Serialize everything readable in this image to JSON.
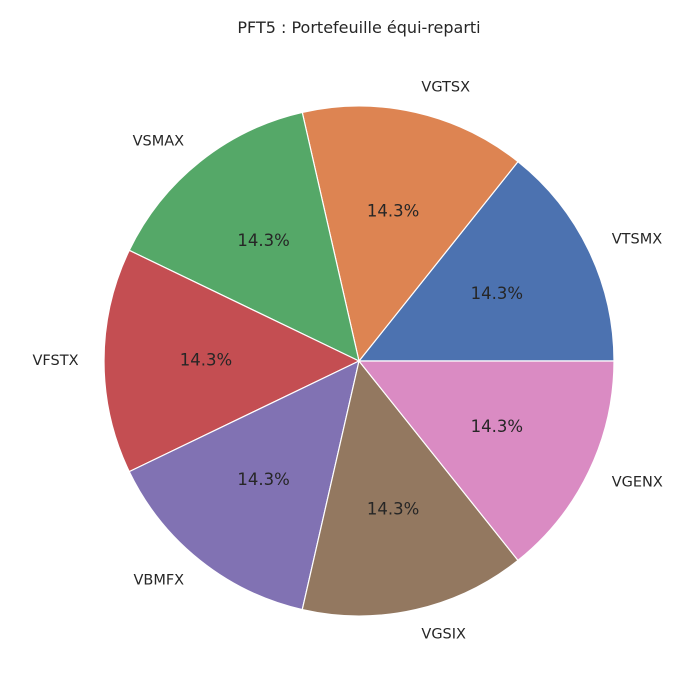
{
  "chart_data": {
    "type": "pie",
    "title": "PFT5 : Portefeuille équi-reparti",
    "start_angle_deg": 0,
    "direction": "counterclockwise",
    "slices": [
      {
        "label": "VTSMX",
        "value": 14.3,
        "pct_label": "14.3%",
        "color": "#4c72b0"
      },
      {
        "label": "VGTSX",
        "value": 14.3,
        "pct_label": "14.3%",
        "color": "#dd8452"
      },
      {
        "label": "VSMAX",
        "value": 14.3,
        "pct_label": "14.3%",
        "color": "#55a868"
      },
      {
        "label": "VFSTX",
        "value": 14.3,
        "pct_label": "14.3%",
        "color": "#c44e52"
      },
      {
        "label": "VBMFX",
        "value": 14.3,
        "pct_label": "14.3%",
        "color": "#8172b3"
      },
      {
        "label": "VGSIX",
        "value": 14.3,
        "pct_label": "14.3%",
        "color": "#937860"
      },
      {
        "label": "VGENX",
        "value": 14.3,
        "pct_label": "14.3%",
        "color": "#da8bc3"
      }
    ]
  }
}
